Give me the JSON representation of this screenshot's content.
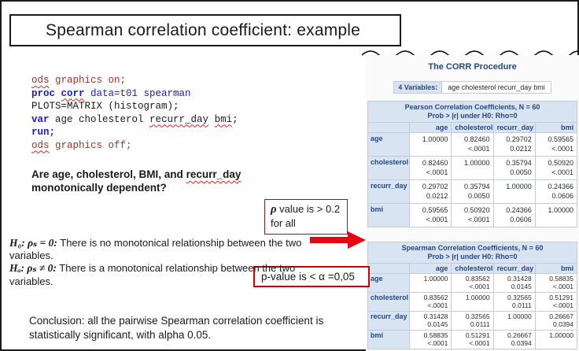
{
  "colors": {
    "slide_border": "#1a1a1a",
    "code_red": "#a63024",
    "code_blue": "#1b1bc4",
    "code_black": "#1a1a1a",
    "wavy_underline": "#e02020",
    "callout_border_dark": "#8f1a1a",
    "callout_border_red": "#d40000",
    "arrow_red": "#e30613",
    "sas_panel_bg": "#fafafa",
    "sas_header_bg": "#d9e4f3",
    "sas_header_text": "#26477e",
    "sas_cell_border": "#c3cbd8",
    "sas_text": "#2a2a2a"
  },
  "title": "Spearman correlation coefficient: example",
  "code": {
    "lines": [
      [
        {
          "text": "ods",
          "color": "red",
          "wavy": true
        },
        {
          "text": " graphics on;",
          "color": "red"
        }
      ],
      [
        {
          "text": "proc ",
          "color": "blue",
          "bold": true
        },
        {
          "text": "corr",
          "color": "blue",
          "bold": true,
          "wavy": true
        },
        {
          "text": " data=t01 spearman",
          "color": "blue"
        }
      ],
      [
        {
          "text": "PLOTS=MATRIX (histogram);",
          "color": "black"
        }
      ],
      [
        {
          "text": "var",
          "color": "blue",
          "bold": true
        },
        {
          "text": " age cholesterol ",
          "color": "black"
        },
        {
          "text": "recurr_day",
          "color": "black",
          "wavy": true
        },
        {
          "text": " ",
          "color": "black"
        },
        {
          "text": "bmi",
          "color": "black",
          "wavy": true
        },
        {
          "text": ";",
          "color": "black"
        }
      ],
      [
        {
          "text": "run;",
          "color": "blue",
          "bold": true
        }
      ],
      [
        {
          "text": "ods",
          "color": "red",
          "wavy": true
        },
        {
          "text": " graphics off;",
          "color": "red"
        }
      ]
    ]
  },
  "question": {
    "segments": [
      {
        "text": "Are age, cholesterol, BMI, and "
      },
      {
        "text": "recurr_day",
        "wavy": true
      },
      {
        "text": " monotonically dependent?"
      }
    ]
  },
  "hypotheses": [
    {
      "prefix": "H₀: ρₛ = 0:",
      "text": " There is no monotonical relationship between the two variables."
    },
    {
      "prefix": "Hₐ: ρₛ ≠ 0:",
      "text": " There is a monotonical relationship between the two variables."
    }
  ],
  "callouts": {
    "rho": {
      "symbol": "ρ",
      "text": " value is > 0.2 for all"
    },
    "p": {
      "text": "p-value is < α =0,05"
    }
  },
  "conclusion": "Conclusion: all the pairwise Spearman correlation coefficient is statistically significant, with alpha 0.05.",
  "sas_output": {
    "proc_title": "The CORR Procedure",
    "variables_label": "4 Variables:",
    "variables_value": "age cholesterol recurr_day bmi",
    "tables": [
      {
        "caption_line1": "Pearson Correlation Coefficients, N = 60",
        "caption_line2": "Prob > |r| under H0: Rho=0",
        "columns": [
          "age",
          "cholesterol",
          "recurr_day",
          "bmi"
        ],
        "rows": [
          {
            "label": "age",
            "cells": [
              {
                "r": "1.00000",
                "p": ""
              },
              {
                "r": "0.82460",
                "p": "<.0001"
              },
              {
                "r": "0.29702",
                "p": "0.0212"
              },
              {
                "r": "0.59565",
                "p": "<.0001"
              }
            ]
          },
          {
            "label": "cholesterol",
            "cells": [
              {
                "r": "0.82460",
                "p": "<.0001"
              },
              {
                "r": "1.00000",
                "p": ""
              },
              {
                "r": "0.35794",
                "p": "0.0050"
              },
              {
                "r": "0.50920",
                "p": "<.0001"
              }
            ]
          },
          {
            "label": "recurr_day",
            "cells": [
              {
                "r": "0.29702",
                "p": "0.0212"
              },
              {
                "r": "0.35794",
                "p": "0.0050"
              },
              {
                "r": "1.00000",
                "p": ""
              },
              {
                "r": "0.24366",
                "p": "0.0606"
              }
            ]
          },
          {
            "label": "bmi",
            "cells": [
              {
                "r": "0.59565",
                "p": "<.0001"
              },
              {
                "r": "0.50920",
                "p": "<.0001"
              },
              {
                "r": "0.24366",
                "p": "0.0606"
              },
              {
                "r": "1.00000",
                "p": ""
              }
            ]
          }
        ]
      },
      {
        "caption_line1": "Spearman Correlation Coefficients, N = 60",
        "caption_line2": "Prob > |r| under H0: Rho=0",
        "columns": [
          "age",
          "cholesterol",
          "recurr_day",
          "bmi"
        ],
        "rows": [
          {
            "label": "age",
            "cells": [
              {
                "r": "1.00000",
                "p": ""
              },
              {
                "r": "0.83562",
                "p": "<.0001"
              },
              {
                "r": "0.31428",
                "p": "0.0145"
              },
              {
                "r": "0.58835",
                "p": "<.0001"
              }
            ]
          },
          {
            "label": "cholesterol",
            "cells": [
              {
                "r": "0.83562",
                "p": "<.0001"
              },
              {
                "r": "1.00000",
                "p": ""
              },
              {
                "r": "0.32565",
                "p": "0.0111"
              },
              {
                "r": "0.51291",
                "p": "<.0001"
              }
            ]
          },
          {
            "label": "recurr_day",
            "cells": [
              {
                "r": "0.31428",
                "p": "0.0145"
              },
              {
                "r": "0.32565",
                "p": "0.0111"
              },
              {
                "r": "1.00000",
                "p": ""
              },
              {
                "r": "0.26667",
                "p": "0.0394"
              }
            ]
          },
          {
            "label": "bmi",
            "cells": [
              {
                "r": "0.58835",
                "p": "<.0001"
              },
              {
                "r": "0.51291",
                "p": "<.0001"
              },
              {
                "r": "0.26667",
                "p": "0.0394"
              },
              {
                "r": "1.00000",
                "p": ""
              }
            ]
          }
        ]
      }
    ]
  }
}
